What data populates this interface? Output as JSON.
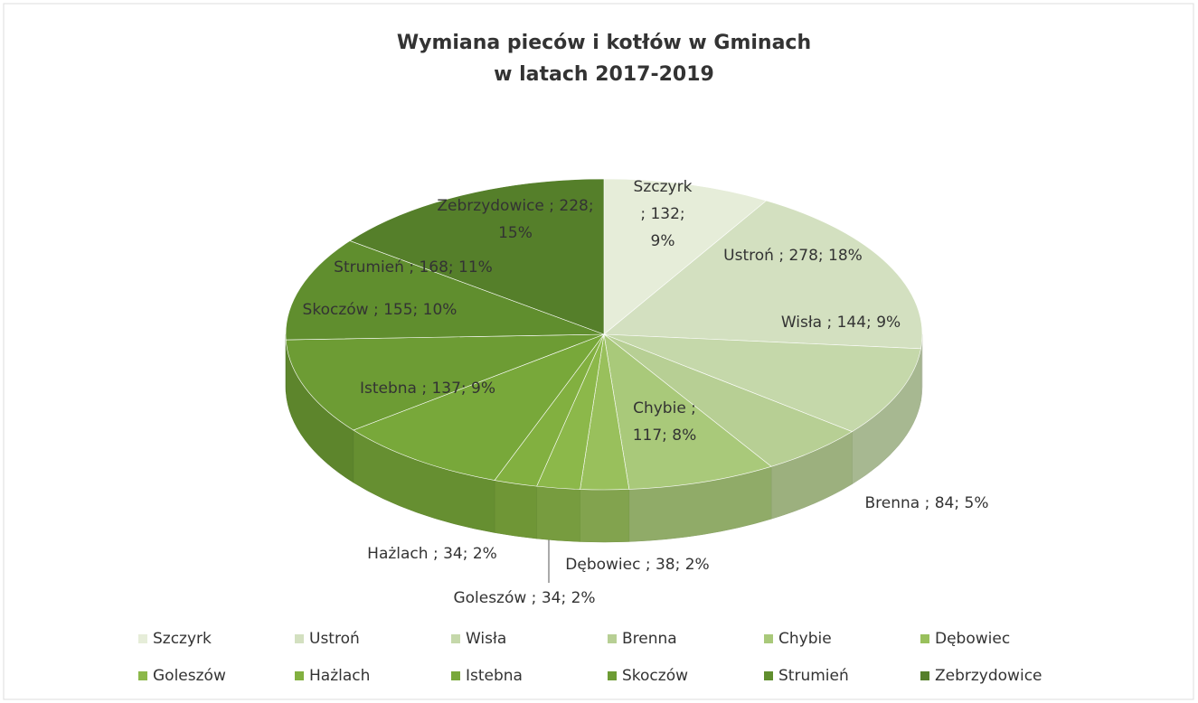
{
  "chart_data": {
    "type": "pie",
    "title": [
      "Wymiana pieców i kotłów w Gminach",
      "w latach 2017-2019"
    ],
    "categories": [
      "Szczyrk",
      "Ustroń",
      "Wisła",
      "Brenna",
      "Chybie",
      "Dębowiec",
      "Goleszów",
      "Hażlach",
      "Istebna",
      "Skoczów",
      "Strumień",
      "Zebrzydowice"
    ],
    "values": [
      132,
      278,
      144,
      84,
      117,
      38,
      34,
      34,
      137,
      155,
      168,
      228
    ],
    "value_labels": [
      [
        "Szczyrk",
        "; 132;",
        "9%"
      ],
      [
        "Ustroń ; 278; 18%"
      ],
      [
        "Wisła ; 144; 9%"
      ],
      [
        "Brenna ; 84; 5%"
      ],
      [
        "Chybie ;",
        "117; 8%"
      ],
      [
        "Dębowiec ; 38; 2%"
      ],
      [
        "Goleszów ; 34; 2%"
      ],
      [
        "Hażlach ; 34; 2%"
      ],
      [
        "Istebna ; 137; 9%"
      ],
      [
        "Skoczów ; 155; 10%"
      ],
      [
        "Strumień ; 168; 11%"
      ],
      [
        "Zebrzydowice ; 228;",
        "15%"
      ]
    ],
    "colors": [
      "#e6edd9",
      "#d3e0c0",
      "#c5d8aa",
      "#b7cf94",
      "#a9c97a",
      "#99c05c",
      "#8cb84a",
      "#82b040",
      "#78a83a",
      "#6d9c34",
      "#608e2e",
      "#557f2a"
    ],
    "legend": "bottom"
  }
}
